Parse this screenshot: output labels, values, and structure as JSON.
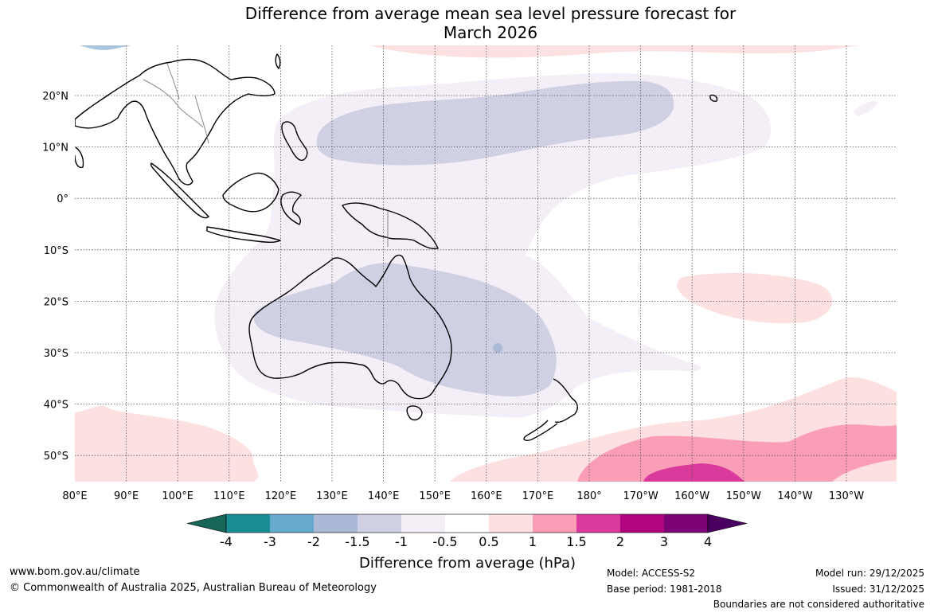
{
  "title": {
    "line1": "Difference from average mean sea level pressure forecast for",
    "line2": "March 2026"
  },
  "latitude_labels": [
    "20°N",
    "10°N",
    "0°",
    "10°S",
    "20°S",
    "30°S",
    "40°S",
    "50°S"
  ],
  "longitude_labels": [
    "80°E",
    "90°E",
    "100°E",
    "110°E",
    "120°E",
    "130°E",
    "140°E",
    "150°E",
    "160°E",
    "170°E",
    "180°",
    "170°W",
    "160°W",
    "150°W",
    "140°W",
    "130°W"
  ],
  "colorbar": {
    "title": "Difference from average (hPa)",
    "tick_labels": [
      "-4",
      "-3",
      "-2",
      "-1.5",
      "-1",
      "-0.5",
      "0.5",
      "1",
      "1.5",
      "2",
      "3",
      "4"
    ],
    "colors": [
      "#17665a",
      "#1a8c94",
      "#65a9cf",
      "#a9b9d6",
      "#cfd0e3",
      "#f4eef7",
      "#ffffff",
      "#fde0e0",
      "#f99eb6",
      "#da3a9c",
      "#b0057f",
      "#7b0376",
      "#4a0060"
    ]
  },
  "footer": {
    "website": "www.bom.gov.au/climate",
    "copyright": "© Commonwealth of Australia 2025, Australian Bureau of Meteorology",
    "model": "Model: ACCESS-S2",
    "base_period": "Base period: 1981-2018",
    "model_run": "Model run: 29/12/2025",
    "issued": "Issued: 31/12/2025",
    "disclaimer": "Boundaries are not considered authoritative"
  }
}
